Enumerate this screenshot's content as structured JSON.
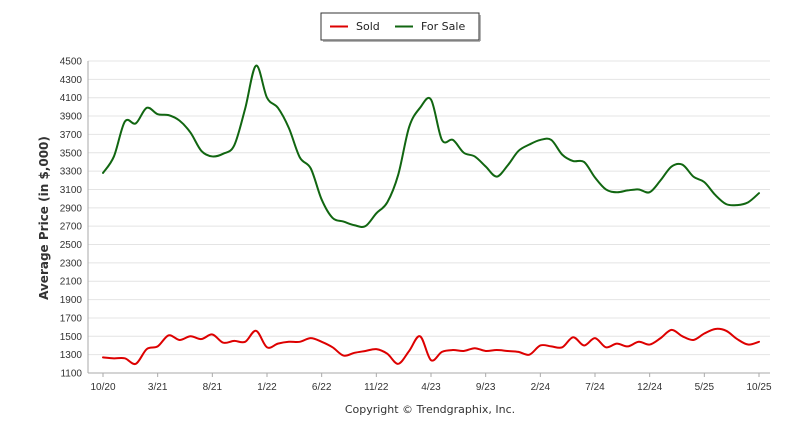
{
  "chart_data": {
    "type": "line",
    "ylabel": "Average Price (in $,000)",
    "xlabel": "",
    "ylim": [
      1100,
      4500
    ],
    "y_ticks": [
      "1100",
      "1300",
      "1500",
      "1700",
      "1900",
      "2100",
      "2300",
      "2500",
      "2700",
      "2900",
      "3100",
      "3300",
      "3500",
      "3700",
      "3900",
      "4100",
      "4300",
      "4500"
    ],
    "x_ticks": [
      "10/20",
      "3/21",
      "8/21",
      "1/22",
      "6/22",
      "11/22",
      "4/23",
      "9/23",
      "2/24",
      "7/24",
      "12/24",
      "5/25",
      "10/25"
    ],
    "grid": true,
    "legend_position": "top-center",
    "copyright": "Copyright © Trendgraphix, Inc.",
    "x_index_start": 0,
    "x_index_end": 60,
    "series": [
      {
        "name": "Sold",
        "color": "#dd0000",
        "values": [
          1270,
          1260,
          1260,
          1200,
          1360,
          1390,
          1510,
          1460,
          1500,
          1470,
          1520,
          1430,
          1450,
          1440,
          1560,
          1380,
          1420,
          1440,
          1440,
          1480,
          1440,
          1380,
          1290,
          1320,
          1340,
          1360,
          1310,
          1200,
          1340,
          1500,
          1240,
          1330,
          1350,
          1340,
          1370,
          1340,
          1350,
          1340,
          1330,
          1300,
          1400,
          1390,
          1380,
          1490,
          1400,
          1480,
          1380,
          1420,
          1390,
          1440,
          1410,
          1480,
          1570,
          1500,
          1460,
          1530,
          1580,
          1560,
          1470,
          1410,
          1440
        ]
      },
      {
        "name": "For Sale",
        "color": "#116611",
        "values": [
          3280,
          3460,
          3840,
          3820,
          3990,
          3920,
          3910,
          3850,
          3720,
          3520,
          3460,
          3490,
          3580,
          3980,
          4450,
          4100,
          3990,
          3770,
          3450,
          3330,
          2990,
          2790,
          2750,
          2710,
          2700,
          2840,
          2960,
          3260,
          3780,
          3990,
          4080,
          3640,
          3640,
          3500,
          3460,
          3350,
          3240,
          3360,
          3520,
          3590,
          3640,
          3640,
          3480,
          3410,
          3400,
          3230,
          3100,
          3070,
          3090,
          3100,
          3070,
          3200,
          3350,
          3370,
          3240,
          3180,
          3040,
          2940,
          2930,
          2960,
          3060
        ]
      }
    ]
  }
}
